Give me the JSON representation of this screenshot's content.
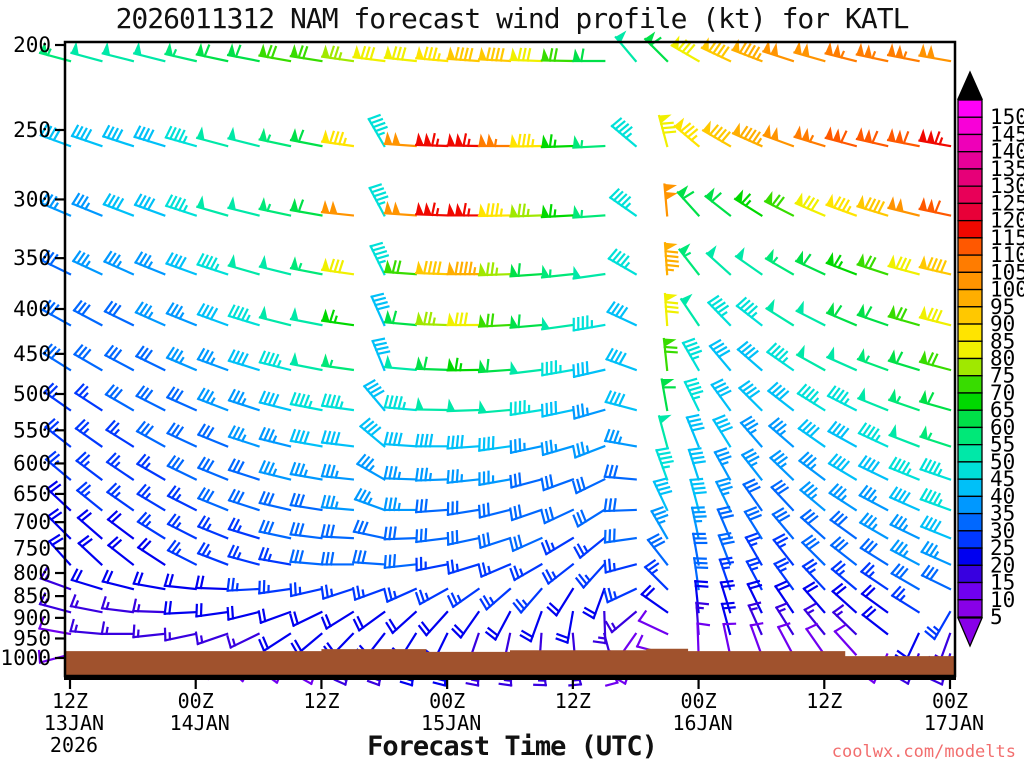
{
  "title": "2026011312 NAM forecast wind profile (kt) for KATL",
  "xaxis_label": "Forecast Time (UTC)",
  "watermark": "coolwx.com/modelts",
  "colors": {
    "background": "#ffffff",
    "frame": "#000000",
    "terrain": "#a0522d",
    "watermark": "#f26e6e",
    "colorbar_over_arrow": "#000000",
    "speed_palette": {
      "5": "#8800e8",
      "10": "#7000f0",
      "15": "#3800e0",
      "20": "#0000f0",
      "25": "#0038ff",
      "30": "#0068ff",
      "35": "#0098ff",
      "40": "#00c0f8",
      "45": "#00e0d8",
      "50": "#00e8a8",
      "55": "#00e878",
      "60": "#00e048",
      "65": "#00d800",
      "70": "#38dc00",
      "75": "#a0e800",
      "80": "#f0f000",
      "85": "#ffe400",
      "90": "#ffc800",
      "95": "#ffae00",
      "100": "#ff9400",
      "105": "#ff7c00",
      "110": "#ff5800",
      "115": "#f00800",
      "120": "#e80038",
      "125": "#e80058",
      "130": "#e60078",
      "135": "#e80098",
      "140": "#ee00b8",
      "145": "#f800d8",
      "150": "#ff00f8"
    }
  },
  "yaxis": {
    "ticks": [
      200,
      250,
      300,
      350,
      400,
      450,
      500,
      550,
      600,
      650,
      700,
      750,
      800,
      850,
      900,
      950,
      1000
    ]
  },
  "xaxis": {
    "ticks": [
      {
        "hour": 0,
        "lines": [
          "12Z",
          "13JAN",
          "2026"
        ]
      },
      {
        "hour": 12,
        "lines": [
          "00Z",
          "14JAN"
        ]
      },
      {
        "hour": 24,
        "lines": [
          "12Z"
        ]
      },
      {
        "hour": 36,
        "lines": [
          "00Z",
          "15JAN"
        ]
      },
      {
        "hour": 48,
        "lines": [
          "12Z"
        ]
      },
      {
        "hour": 60,
        "lines": [
          "00Z",
          "16JAN"
        ]
      },
      {
        "hour": 72,
        "lines": [
          "12Z"
        ]
      },
      {
        "hour": 84,
        "lines": [
          "00Z",
          "17JAN"
        ]
      }
    ]
  },
  "colorbar": {
    "values": [
      150,
      145,
      140,
      135,
      130,
      125,
      120,
      115,
      110,
      105,
      100,
      95,
      90,
      85,
      80,
      75,
      70,
      65,
      60,
      55,
      50,
      45,
      40,
      35,
      30,
      25,
      20,
      15,
      10,
      5
    ]
  },
  "chart_data": {
    "type": "wind-barb-time-height",
    "model": "NAM",
    "init": "2026011312",
    "station": "KATL",
    "units": "kt",
    "hour_start": 0,
    "hour_step": 3,
    "hour_end": 84,
    "levels": [
      {
        "p": 200,
        "spd": [
          55,
          52,
          50,
          52,
          55,
          58,
          62,
          68,
          72,
          75,
          78,
          82,
          85,
          88,
          90,
          80,
          72,
          60,
          48,
          62,
          80,
          88,
          95,
          100,
          102,
          105,
          105,
          103,
          102
        ],
        "dir": [
          285,
          285,
          284,
          284,
          283,
          282,
          281,
          280,
          279,
          278,
          277,
          276,
          275,
          274,
          273,
          272,
          271,
          270,
          320,
          315,
          300,
          295,
          291,
          288,
          286,
          284,
          282,
          281,
          280
        ]
      },
      {
        "p": 250,
        "spd": [
          38,
          40,
          40,
          42,
          45,
          48,
          52,
          56,
          60,
          85,
          45,
          100,
          115,
          115,
          105,
          85,
          65,
          55,
          45,
          80,
          85,
          90,
          95,
          100,
          104,
          108,
          110,
          112,
          115
        ],
        "dir": [
          290,
          289,
          288,
          287,
          286,
          285,
          284,
          282,
          281,
          278,
          330,
          274,
          272,
          271,
          270,
          269,
          268,
          267,
          310,
          345,
          310,
          300,
          294,
          290,
          287,
          285,
          283,
          281,
          280
        ]
      },
      {
        "p": 300,
        "spd": [
          35,
          36,
          38,
          40,
          44,
          48,
          52,
          56,
          60,
          100,
          45,
          100,
          115,
          115,
          85,
          75,
          65,
          55,
          45,
          100,
          60,
          62,
          65,
          70,
          78,
          85,
          92,
          102,
          112
        ],
        "dir": [
          293,
          292,
          291,
          290,
          288,
          286,
          284,
          282,
          280,
          276,
          332,
          274,
          272,
          270,
          269,
          268,
          267,
          266,
          305,
          355,
          318,
          308,
          302,
          297,
          293,
          290,
          287,
          284,
          282
        ]
      },
      {
        "p": 350,
        "spd": [
          32,
          33,
          34,
          36,
          40,
          44,
          48,
          52,
          56,
          80,
          45,
          70,
          90,
          95,
          75,
          62,
          55,
          48,
          45,
          95,
          55,
          52,
          52,
          56,
          60,
          66,
          72,
          80,
          88
        ],
        "dir": [
          296,
          295,
          294,
          292,
          290,
          288,
          286,
          284,
          281,
          278,
          334,
          274,
          272,
          270,
          268,
          266,
          264,
          262,
          300,
          356,
          322,
          312,
          305,
          300,
          295,
          291,
          288,
          285,
          283
        ]
      },
      {
        "p": 400,
        "spd": [
          30,
          31,
          32,
          34,
          37,
          40,
          44,
          48,
          52,
          65,
          42,
          60,
          75,
          80,
          72,
          62,
          52,
          46,
          42,
          80,
          50,
          46,
          46,
          48,
          52,
          58,
          62,
          70,
          78
        ],
        "dir": [
          299,
          298,
          296,
          294,
          292,
          290,
          287,
          284,
          281,
          278,
          336,
          275,
          272,
          270,
          267,
          265,
          262,
          260,
          295,
          356,
          326,
          316,
          308,
          302,
          297,
          293,
          289,
          286,
          284
        ]
      },
      {
        "p": 450,
        "spd": [
          28,
          29,
          30,
          32,
          34,
          37,
          40,
          44,
          48,
          55,
          40,
          52,
          62,
          65,
          60,
          52,
          46,
          42,
          40,
          68,
          46,
          42,
          42,
          44,
          48,
          52,
          56,
          62,
          68
        ],
        "dir": [
          302,
          300,
          298,
          296,
          293,
          290,
          287,
          284,
          281,
          278,
          338,
          275,
          272,
          269,
          266,
          263,
          260,
          257,
          290,
          354,
          330,
          320,
          311,
          305,
          299,
          294,
          290,
          287,
          285
        ]
      },
      {
        "p": 500,
        "spd": [
          26,
          27,
          28,
          30,
          32,
          34,
          37,
          40,
          43,
          46,
          40,
          45,
          50,
          52,
          48,
          44,
          40,
          37,
          38,
          58,
          44,
          40,
          38,
          40,
          43,
          46,
          50,
          55,
          60
        ],
        "dir": [
          305,
          303,
          300,
          297,
          294,
          291,
          288,
          284,
          281,
          278,
          320,
          275,
          271,
          268,
          265,
          261,
          258,
          254,
          285,
          350,
          334,
          324,
          315,
          308,
          302,
          297,
          292,
          289,
          286
        ]
      },
      {
        "p": 550,
        "spd": [
          25,
          25,
          26,
          28,
          30,
          32,
          34,
          36,
          38,
          40,
          38,
          40,
          42,
          42,
          40,
          37,
          35,
          33,
          35,
          48,
          42,
          38,
          36,
          37,
          39,
          42,
          45,
          49,
          53
        ],
        "dir": [
          308,
          305,
          302,
          299,
          295,
          292,
          288,
          284,
          280,
          277,
          310,
          274,
          270,
          266,
          262,
          258,
          254,
          249,
          280,
          345,
          338,
          328,
          319,
          311,
          305,
          299,
          295,
          291,
          288
        ]
      },
      {
        "p": 600,
        "spd": [
          24,
          24,
          25,
          26,
          28,
          30,
          31,
          33,
          34,
          36,
          36,
          36,
          36,
          36,
          34,
          32,
          31,
          30,
          32,
          44,
          40,
          36,
          33,
          34,
          36,
          38,
          41,
          44,
          47
        ],
        "dir": [
          310,
          307,
          304,
          300,
          296,
          292,
          288,
          284,
          280,
          276,
          300,
          272,
          268,
          264,
          260,
          255,
          250,
          244,
          275,
          340,
          342,
          331,
          322,
          314,
          307,
          301,
          296,
          292,
          289
        ]
      },
      {
        "p": 650,
        "spd": [
          22,
          23,
          23,
          25,
          26,
          28,
          29,
          30,
          32,
          33,
          33,
          33,
          32,
          32,
          31,
          30,
          29,
          28,
          30,
          38,
          38,
          34,
          31,
          31,
          33,
          35,
          37,
          40,
          43
        ],
        "dir": [
          313,
          309,
          305,
          301,
          297,
          292,
          288,
          283,
          279,
          275,
          290,
          270,
          266,
          261,
          256,
          251,
          245,
          238,
          268,
          335,
          345,
          334,
          325,
          317,
          310,
          303,
          298,
          294,
          290
        ]
      },
      {
        "p": 700,
        "spd": [
          21,
          21,
          22,
          23,
          25,
          26,
          27,
          28,
          30,
          30,
          31,
          30,
          30,
          29,
          29,
          28,
          27,
          26,
          28,
          34,
          35,
          32,
          29,
          29,
          30,
          32,
          34,
          37,
          39
        ],
        "dir": [
          315,
          311,
          307,
          302,
          297,
          292,
          287,
          282,
          277,
          273,
          282,
          268,
          263,
          258,
          252,
          246,
          239,
          231,
          262,
          330,
          348,
          337,
          328,
          320,
          312,
          306,
          300,
          296,
          292
        ]
      },
      {
        "p": 750,
        "spd": [
          19,
          20,
          20,
          22,
          23,
          24,
          25,
          26,
          28,
          28,
          28,
          28,
          27,
          27,
          26,
          26,
          25,
          24,
          26,
          30,
          32,
          30,
          27,
          26,
          28,
          29,
          31,
          33,
          35
        ],
        "dir": [
          318,
          313,
          308,
          303,
          297,
          291,
          285,
          280,
          275,
          270,
          274,
          264,
          259,
          253,
          247,
          240,
          232,
          222,
          255,
          322,
          350,
          339,
          330,
          322,
          315,
          308,
          302,
          298,
          294
        ]
      },
      {
        "p": 800,
        "spd": [
          17,
          18,
          18,
          19,
          21,
          22,
          23,
          24,
          25,
          25,
          26,
          25,
          25,
          24,
          24,
          23,
          22,
          21,
          23,
          26,
          28,
          26,
          24,
          23,
          24,
          26,
          27,
          29,
          31
        ],
        "dir": [
          290,
          287,
          284,
          280,
          276,
          272,
          267,
          262,
          257,
          252,
          250,
          246,
          241,
          235,
          229,
          221,
          212,
          200,
          245,
          315,
          352,
          341,
          332,
          324,
          317,
          310,
          304,
          300,
          296
        ]
      },
      {
        "p": 850,
        "spd": [
          15,
          15,
          16,
          17,
          18,
          19,
          20,
          21,
          22,
          22,
          22,
          22,
          21,
          21,
          20,
          19,
          18,
          17,
          15,
          18,
          22,
          22,
          20,
          18,
          19,
          20,
          22,
          24,
          26
        ],
        "dir": [
          285,
          281,
          277,
          272,
          267,
          262,
          256,
          250,
          244,
          238,
          234,
          228,
          222,
          215,
          208,
          200,
          190,
          178,
          230,
          305,
          354,
          343,
          334,
          326,
          319,
          312,
          306,
          302,
          210
        ]
      },
      {
        "p": 900,
        "spd": [
          12,
          13,
          13,
          14,
          15,
          16,
          17,
          18,
          18,
          18,
          18,
          18,
          18,
          17,
          17,
          16,
          15,
          13,
          10,
          12,
          16,
          18,
          16,
          15,
          15,
          16,
          18,
          20,
          15
        ],
        "dir": [
          280,
          275,
          270,
          264,
          258,
          251,
          244,
          237,
          230,
          224,
          218,
          212,
          206,
          199,
          192,
          184,
          175,
          165,
          215,
          295,
          356,
          345,
          336,
          328,
          321,
          314,
          308,
          205,
          200
        ]
      },
      {
        "p": 950,
        "spd": [
          10,
          9,
          8,
          7,
          6,
          6,
          8,
          10,
          12,
          15,
          17,
          18,
          18,
          17,
          16,
          15,
          14,
          12,
          8,
          8,
          10,
          12,
          12,
          10,
          10,
          11,
          12,
          13,
          14
        ],
        "dir": [
          255,
          248,
          240,
          232,
          225,
          218,
          211,
          205,
          199,
          194,
          190,
          187,
          184,
          181,
          178,
          172,
          165,
          155,
          200,
          285,
          358,
          348,
          340,
          332,
          325,
          318,
          205,
          200,
          195
        ]
      }
    ],
    "terrain_profile": [
      [
        0,
        982
      ],
      [
        24,
        982
      ],
      [
        24,
        977
      ],
      [
        34,
        977
      ],
      [
        34,
        984
      ],
      [
        42,
        984
      ],
      [
        42,
        980
      ],
      [
        55,
        980
      ],
      [
        55,
        976
      ],
      [
        59,
        976
      ],
      [
        59,
        982
      ],
      [
        74,
        982
      ],
      [
        74,
        995
      ],
      [
        84,
        995
      ]
    ]
  }
}
